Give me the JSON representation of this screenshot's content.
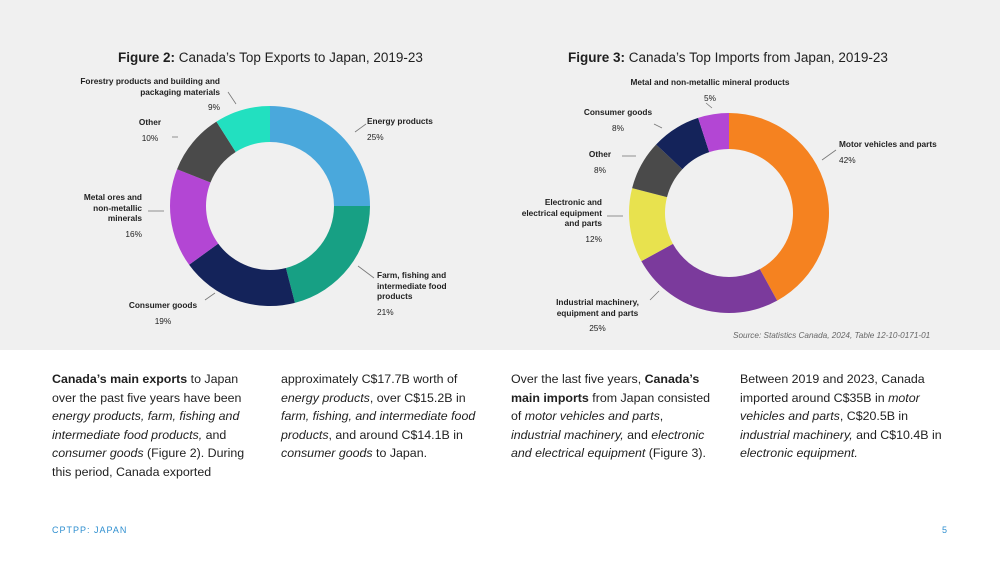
{
  "charts": [
    {
      "title_bold": "Figure 2:",
      "title_rest": " Canada’s Top Exports to Japan, 2019-23"
    },
    {
      "title_bold": "Figure 3:",
      "title_rest": " Canada’s Top Imports from Japan, 2019-23"
    }
  ],
  "chart_data": [
    {
      "type": "pie",
      "subtype": "donut",
      "title": "Figure 2: Canada’s Top Exports to Japan, 2019-23",
      "slices": [
        {
          "label": "Energy products",
          "value": 25,
          "pct_label": "25%",
          "color": "#4aa8dc"
        },
        {
          "label": "Farm, fishing and intermediate food products",
          "value": 21,
          "pct_label": "21%",
          "color": "#17a084"
        },
        {
          "label": "Consumer goods",
          "value": 19,
          "pct_label": "19%",
          "color": "#14235a"
        },
        {
          "label": "Metal ores and non-metallic minerals",
          "value": 16,
          "pct_label": "16%",
          "color": "#b346d4"
        },
        {
          "label": "Other",
          "value": 10,
          "pct_label": "10%",
          "color": "#4a4a4a"
        },
        {
          "label": "Forestry products and building and packaging materials",
          "value": 9,
          "pct_label": "9%",
          "color": "#22e0c0"
        }
      ]
    },
    {
      "type": "pie",
      "subtype": "donut",
      "title": "Figure 3: Canada’s Top Imports from Japan, 2019-23",
      "slices": [
        {
          "label": "Motor vehicles and parts",
          "value": 42,
          "pct_label": "42%",
          "color": "#f58220"
        },
        {
          "label": "Industrial machinery, equipment and parts",
          "value": 25,
          "pct_label": "25%",
          "color": "#7b3a9c"
        },
        {
          "label": "Electronic and electrical equipment and parts",
          "value": 12,
          "pct_label": "12%",
          "color": "#e8e24e"
        },
        {
          "label": "Other",
          "value": 8,
          "pct_label": "8%",
          "color": "#4a4a4a"
        },
        {
          "label": "Consumer goods",
          "value": 8,
          "pct_label": "8%",
          "color": "#14235a"
        },
        {
          "label": "Metal and non-metallic mineral products",
          "value": 5,
          "pct_label": "5%",
          "color": "#b346d4"
        }
      ]
    }
  ],
  "source": "Source: Statistics Canada, 2024, Table 12-10-0171-01",
  "text": {
    "col1": [
      {
        "t": "Canada’s main exports",
        "s": "b"
      },
      {
        "t": " to Japan over the past five years have been ",
        "s": ""
      },
      {
        "t": "energy products, farm, fishing and intermediate food products,",
        "s": "i"
      },
      {
        "t": " and ",
        "s": ""
      },
      {
        "t": "consumer goods",
        "s": "i"
      },
      {
        "t": " (Figure 2). During this period, Canada exported",
        "s": ""
      }
    ],
    "col2": [
      {
        "t": "approximately C$17.7B worth of ",
        "s": ""
      },
      {
        "t": "energy products",
        "s": "i"
      },
      {
        "t": ", over C$15.2B in ",
        "s": ""
      },
      {
        "t": "farm, fishing, and intermediate food products",
        "s": "i"
      },
      {
        "t": ", and around C$14.1B in ",
        "s": ""
      },
      {
        "t": "consumer goods",
        "s": "i"
      },
      {
        "t": " to Japan.",
        "s": ""
      }
    ],
    "col3": [
      {
        "t": "Over the last five years, ",
        "s": ""
      },
      {
        "t": "Canada’s main imports",
        "s": "b"
      },
      {
        "t": " from Japan consisted of ",
        "s": ""
      },
      {
        "t": "motor vehicles and parts",
        "s": "i"
      },
      {
        "t": ", ",
        "s": ""
      },
      {
        "t": "industrial machinery,",
        "s": "i"
      },
      {
        "t": " and ",
        "s": ""
      },
      {
        "t": "electronic and electrical equipment",
        "s": "i"
      },
      {
        "t": " (Figure 3).",
        "s": ""
      }
    ],
    "col4": [
      {
        "t": "Between 2019 and 2023, Canada imported around C$35B in ",
        "s": ""
      },
      {
        "t": "motor vehicles and parts",
        "s": "i"
      },
      {
        "t": ", C$20.5B in ",
        "s": ""
      },
      {
        "t": "industrial machinery,",
        "s": "i"
      },
      {
        "t": " and C$10.4B in ",
        "s": ""
      },
      {
        "t": "electronic equipment.",
        "s": "i"
      }
    ]
  },
  "footer": {
    "left": "CPTPP: JAPAN",
    "page": "5"
  }
}
